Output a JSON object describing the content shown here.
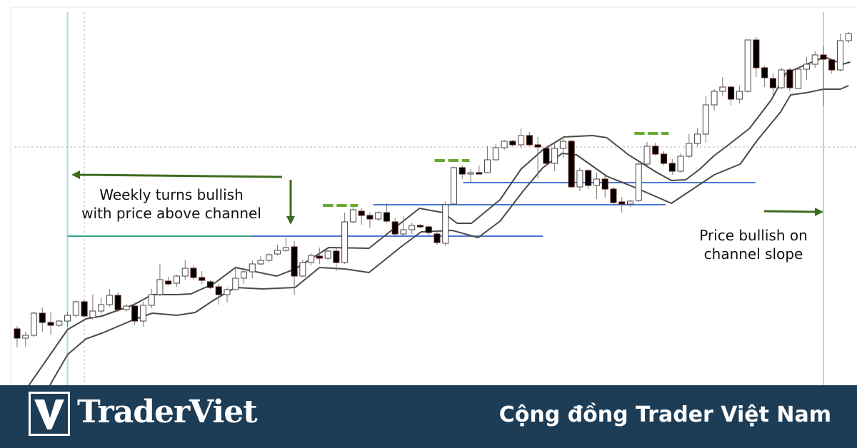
{
  "chart_data": {
    "type": "candlestick",
    "title": "",
    "xlabel": "",
    "ylabel": "",
    "grid": false,
    "colors": {
      "bull_fill": "#ffffff",
      "bear_fill": "#000000",
      "channel": "#4a4a4a",
      "level": "#4a78d0",
      "level_teal": "#3aa38a",
      "marker": "#6aa832",
      "arrow": "#3e6b1f",
      "vline": "#a8d8ea"
    },
    "candles_ohlc": [
      [
        99,
        103,
        73,
        86
      ],
      [
        86,
        95,
        74,
        90
      ],
      [
        90,
        123,
        87,
        121
      ],
      [
        121,
        129,
        95,
        108
      ],
      [
        108,
        122,
        91,
        104
      ],
      [
        104,
        112,
        102,
        110
      ],
      [
        110,
        123,
        102,
        118
      ],
      [
        118,
        139,
        115,
        137
      ],
      [
        137,
        140,
        115,
        117
      ],
      [
        115,
        147,
        112,
        124
      ],
      [
        124,
        143,
        120,
        133
      ],
      [
        133,
        155,
        130,
        146
      ],
      [
        146,
        150,
        123,
        126
      ],
      [
        126,
        134,
        123,
        131
      ],
      [
        131,
        136,
        105,
        110
      ],
      [
        110,
        137,
        102,
        132
      ],
      [
        132,
        155,
        128,
        147
      ],
      [
        147,
        190,
        145,
        168
      ],
      [
        166,
        172,
        160,
        162
      ],
      [
        163,
        175,
        158,
        173
      ],
      [
        173,
        196,
        168,
        184
      ],
      [
        184,
        188,
        167,
        171
      ],
      [
        171,
        180,
        162,
        167
      ],
      [
        165,
        167,
        155,
        157
      ],
      [
        158,
        162,
        133,
        147
      ],
      [
        147,
        157,
        136,
        154
      ],
      [
        154,
        184,
        153,
        170
      ],
      [
        170,
        184,
        162,
        179
      ],
      [
        179,
        195,
        170,
        190
      ],
      [
        190,
        201,
        188,
        195
      ],
      [
        195,
        205,
        192,
        203
      ],
      [
        204,
        217,
        202,
        209
      ],
      [
        209,
        227,
        207,
        213
      ],
      [
        214,
        222,
        147,
        173
      ],
      [
        173,
        196,
        172,
        192
      ],
      [
        192,
        205,
        188,
        202
      ],
      [
        201,
        213,
        190,
        198
      ],
      [
        198,
        210,
        195,
        208
      ],
      [
        208,
        213,
        180,
        192
      ],
      [
        192,
        262,
        190,
        249
      ],
      [
        249,
        272,
        247,
        266
      ],
      [
        264,
        268,
        245,
        258
      ],
      [
        258,
        262,
        240,
        253
      ],
      [
        253,
        264,
        250,
        262
      ],
      [
        262,
        275,
        248,
        250
      ],
      [
        249,
        255,
        230,
        232
      ],
      [
        232,
        257,
        230,
        238
      ],
      [
        238,
        248,
        232,
        244
      ],
      [
        244,
        246,
        240,
        242
      ],
      [
        242,
        244,
        230,
        234
      ],
      [
        232,
        237,
        217,
        220
      ],
      [
        219,
        278,
        215,
        273
      ],
      [
        274,
        327,
        272,
        325
      ],
      [
        325,
        328,
        309,
        316
      ],
      [
        316,
        323,
        305,
        318
      ],
      [
        318,
        328,
        317,
        317
      ],
      [
        318,
        355,
        317,
        336
      ],
      [
        336,
        358,
        335,
        353
      ],
      [
        353,
        364,
        350,
        362
      ],
      [
        362,
        364,
        355,
        357
      ],
      [
        357,
        380,
        352,
        370
      ],
      [
        370,
        375,
        355,
        357
      ],
      [
        357,
        368,
        310,
        354
      ],
      [
        352,
        355,
        327,
        331
      ],
      [
        331,
        360,
        320,
        352
      ],
      [
        352,
        368,
        338,
        362
      ],
      [
        362,
        364,
        297,
        298
      ],
      [
        298,
        325,
        292,
        321
      ],
      [
        321,
        323,
        295,
        300
      ],
      [
        300,
        318,
        281,
        309
      ],
      [
        309,
        313,
        283,
        295
      ],
      [
        295,
        298,
        273,
        276
      ],
      [
        277,
        284,
        262,
        274
      ],
      [
        274,
        280,
        270,
        278
      ],
      [
        279,
        332,
        277,
        330
      ],
      [
        330,
        361,
        328,
        355
      ],
      [
        355,
        360,
        342,
        344
      ],
      [
        344,
        348,
        328,
        331
      ],
      [
        331,
        337,
        315,
        320
      ],
      [
        320,
        345,
        318,
        341
      ],
      [
        341,
        372,
        338,
        359
      ],
      [
        359,
        380,
        355,
        372
      ],
      [
        372,
        425,
        360,
        413
      ],
      [
        413,
        435,
        405,
        432
      ],
      [
        432,
        452,
        425,
        438
      ],
      [
        438,
        440,
        413,
        421
      ],
      [
        421,
        440,
        415,
        432
      ],
      [
        432,
        504,
        430,
        504
      ],
      [
        504,
        508,
        452,
        465
      ],
      [
        465,
        468,
        438,
        451
      ],
      [
        450,
        457,
        425,
        437
      ],
      [
        437,
        465,
        435,
        462
      ],
      [
        462,
        465,
        432,
        437
      ],
      [
        436,
        465,
        435,
        463
      ],
      [
        463,
        480,
        448,
        470
      ],
      [
        470,
        488,
        465,
        483
      ],
      [
        483,
        495,
        412,
        477
      ],
      [
        476,
        477,
        457,
        462
      ],
      [
        462,
        513,
        460,
        503
      ],
      [
        503,
        515,
        500,
        513
      ]
    ],
    "channel_upper": [
      [
        2.4,
        20
      ],
      [
        7,
        98
      ],
      [
        9.2,
        113
      ],
      [
        11.1,
        117
      ],
      [
        14.9,
        133
      ],
      [
        17.1,
        147
      ],
      [
        20,
        147
      ],
      [
        21.7,
        148
      ],
      [
        24.5,
        163
      ],
      [
        27,
        185
      ],
      [
        31.9,
        173
      ],
      [
        34.1,
        183
      ],
      [
        38.1,
        213
      ],
      [
        42.9,
        212
      ],
      [
        48.9,
        268
      ],
      [
        51.7,
        262
      ],
      [
        53.4,
        247
      ],
      [
        55.1,
        247
      ],
      [
        58.5,
        280
      ],
      [
        61,
        323
      ],
      [
        63.6,
        350
      ],
      [
        66.1,
        368
      ],
      [
        69.5,
        370
      ],
      [
        71.2,
        367
      ],
      [
        73.8,
        343
      ],
      [
        77.2,
        318
      ],
      [
        78.9,
        307
      ],
      [
        80.6,
        308
      ],
      [
        82.3,
        323
      ],
      [
        84,
        342
      ],
      [
        85.7,
        357
      ],
      [
        88.2,
        380
      ],
      [
        90.8,
        420
      ],
      [
        92.5,
        457
      ],
      [
        95,
        470
      ],
      [
        97.2,
        480
      ],
      [
        99.3,
        470
      ],
      [
        100.2,
        473
      ]
    ],
    "channel_lower": [
      [
        4.9,
        20
      ],
      [
        7,
        63
      ],
      [
        9.2,
        85
      ],
      [
        11.1,
        93
      ],
      [
        14.9,
        112
      ],
      [
        17.1,
        121
      ],
      [
        20,
        118
      ],
      [
        22.2,
        122
      ],
      [
        24.5,
        140
      ],
      [
        27,
        157
      ],
      [
        30.2,
        155
      ],
      [
        34.1,
        157
      ],
      [
        37,
        185
      ],
      [
        40,
        183
      ],
      [
        42.9,
        178
      ],
      [
        46.6,
        213
      ],
      [
        49.1,
        235
      ],
      [
        52.8,
        237
      ],
      [
        55.9,
        227
      ],
      [
        58.5,
        250
      ],
      [
        61.3,
        293
      ],
      [
        63.6,
        325
      ],
      [
        65.9,
        345
      ],
      [
        67.6,
        343
      ],
      [
        71.2,
        313
      ],
      [
        74.6,
        297
      ],
      [
        78.9,
        275
      ],
      [
        84,
        315
      ],
      [
        87.1,
        330
      ],
      [
        89.1,
        363
      ],
      [
        91.9,
        403
      ],
      [
        93.1,
        427
      ],
      [
        95,
        430
      ],
      [
        97,
        435
      ],
      [
        99,
        435
      ],
      [
        100,
        440
      ]
    ],
    "levels": [
      {
        "price": 229,
        "from": 28.8,
        "to": 63.6,
        "color": "blue"
      },
      {
        "price": 273,
        "from": 43.4,
        "to": 78.2,
        "color": "blue"
      },
      {
        "price": 304,
        "from": 54.1,
        "to": 88.9,
        "color": "blue"
      },
      {
        "price": 229,
        "from": 7,
        "to": 28.8,
        "color": "teal"
      }
    ],
    "markers": [
      {
        "price": 272,
        "from": 37.4,
        "to": 42.3
      },
      {
        "price": 335,
        "from": 50.7,
        "to": 55.6
      },
      {
        "price": 373,
        "from": 74.5,
        "to": 79.3
      }
    ],
    "vlines": [
      7,
      97
    ],
    "crosshair": {
      "bar": 9,
      "price": 354
    },
    "annotations": [
      {
        "text_line1": "Weekly turns bullish",
        "text_line2": "with price above channel"
      },
      {
        "text_line1": "Price bullish on",
        "text_line2": "channel slope"
      }
    ]
  },
  "banner": {
    "logo_letter": "V",
    "brand": "TraderViet",
    "tagline": "Cộng đồng Trader Việt Nam",
    "background": "#1d3d57"
  }
}
